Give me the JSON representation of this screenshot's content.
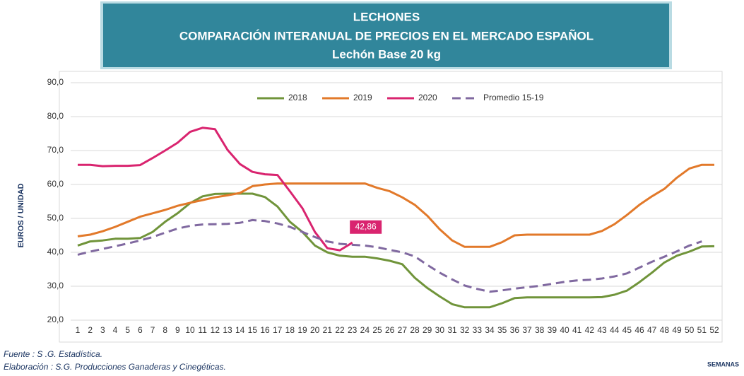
{
  "chart_data": {
    "type": "line",
    "title": [
      "LECHONES",
      "COMPARACIÓN INTERANUAL DE PRECIOS EN EL MERCADO ESPAÑOL",
      "Lechón Base 20 kg"
    ],
    "y_label": "EUROS / UNIDAD",
    "x_label": "SEMANAS",
    "footnotes": [
      "Fuente :  S .G. Estadística.",
      "Elaboración : S.G. Producciones Ganaderas y Cinegéticas."
    ],
    "categories": [
      "1",
      "2",
      "3",
      "4",
      "5",
      "6",
      "7",
      "8",
      "9",
      "10",
      "11",
      "12",
      "13",
      "14",
      "15",
      "16",
      "17",
      "18",
      "19",
      "20",
      "21",
      "22",
      "23",
      "24",
      "25",
      "26",
      "27",
      "28",
      "29",
      "30",
      "31",
      "32",
      "33",
      "34",
      "35",
      "36",
      "37",
      "38",
      "39",
      "40",
      "41",
      "42",
      "43",
      "44",
      "45",
      "46",
      "47",
      "48",
      "49",
      "50",
      "51",
      "52"
    ],
    "ylim": [
      20,
      90
    ],
    "yticks": [
      {
        "value": 20,
        "label": "20,0"
      },
      {
        "value": 30,
        "label": "30,0"
      },
      {
        "value": 40,
        "label": "40,0"
      },
      {
        "value": 50,
        "label": "50,0"
      },
      {
        "value": 60,
        "label": "60,0"
      },
      {
        "value": 70,
        "label": "70,0"
      },
      {
        "value": 80,
        "label": "80,0"
      },
      {
        "value": 90,
        "label": "90,0"
      }
    ],
    "grid": true,
    "legend": "top",
    "series": [
      {
        "name": "2018",
        "color": "#70943a",
        "style": "solid",
        "values": [
          42,
          43.2,
          43.5,
          44,
          44,
          44.2,
          46,
          49,
          51.5,
          54.5,
          56.5,
          57.2,
          57.3,
          57.3,
          57.3,
          56.3,
          53.5,
          49,
          46,
          42,
          40,
          39,
          38.7,
          38.7,
          38.2,
          37.5,
          36.5,
          32.5,
          29.5,
          27,
          24.7,
          23.8,
          23.8,
          23.8,
          25,
          26.5,
          26.7,
          26.7,
          26.7,
          26.7,
          26.7,
          26.7,
          26.8,
          27.5,
          28.7,
          31.2,
          34,
          37,
          39,
          40.2,
          41.7,
          41.8
        ]
      },
      {
        "name": "2019",
        "color": "#e2792a",
        "style": "solid",
        "values": [
          44.7,
          45.2,
          46.2,
          47.5,
          49,
          50.5,
          51.5,
          52.5,
          53.7,
          54.6,
          55.4,
          56.2,
          56.8,
          57.5,
          59.5,
          60,
          60.3,
          60.3,
          60.3,
          60.3,
          60.3,
          60.3,
          60.3,
          60.3,
          59,
          58,
          56.2,
          54,
          50.8,
          46.8,
          43.5,
          41.6,
          41.6,
          41.6,
          43,
          45,
          45.2,
          45.2,
          45.2,
          45.2,
          45.2,
          45.2,
          46.3,
          48.3,
          51,
          54,
          56.5,
          58.7,
          62,
          64.7,
          65.8,
          65.8
        ]
      },
      {
        "name": "2020",
        "color": "#d9246f",
        "style": "solid",
        "values": [
          65.8,
          65.8,
          65.4,
          65.5,
          65.5,
          65.7,
          67.8,
          70,
          72.3,
          75.5,
          76.7,
          76.3,
          70.2,
          66,
          63.7,
          63,
          62.8,
          58,
          53,
          46,
          41.2,
          40.6,
          42.86,
          null,
          null,
          null,
          null,
          null,
          null,
          null,
          null,
          null,
          null,
          null,
          null,
          null,
          null,
          null,
          null,
          null,
          null,
          null,
          null,
          null,
          null,
          null,
          null,
          null,
          null,
          null,
          null,
          null
        ],
        "value_labels": [
          null,
          null,
          null,
          null,
          null,
          null,
          null,
          null,
          null,
          null,
          null,
          null,
          null,
          null,
          null,
          null,
          null,
          null,
          null,
          null,
          null,
          null,
          "42,86",
          null,
          null,
          null,
          null,
          null,
          null,
          null,
          null,
          null,
          null,
          null,
          null,
          null,
          null,
          null,
          null,
          null,
          null,
          null,
          null,
          null,
          null,
          null,
          null,
          null,
          null,
          null,
          null,
          null
        ]
      },
      {
        "name": "Promedio 15-19",
        "color": "#8069a0",
        "style": "dashed",
        "values": [
          39.3,
          40.2,
          41,
          41.8,
          42.6,
          43.5,
          44.5,
          45.8,
          47,
          47.8,
          48.2,
          48.3,
          48.4,
          48.7,
          49.5,
          49.2,
          48.5,
          47.5,
          46,
          44.5,
          43.2,
          42.5,
          42.2,
          42,
          41.5,
          40.7,
          40,
          38.8,
          36.3,
          34,
          32,
          30.2,
          29.2,
          28.4,
          28.8,
          29.3,
          29.7,
          30.1,
          30.7,
          31.3,
          31.7,
          31.9,
          32.3,
          32.9,
          33.8,
          35.5,
          37.2,
          38.7,
          40.3,
          42,
          43.2,
          null
        ]
      }
    ]
  }
}
